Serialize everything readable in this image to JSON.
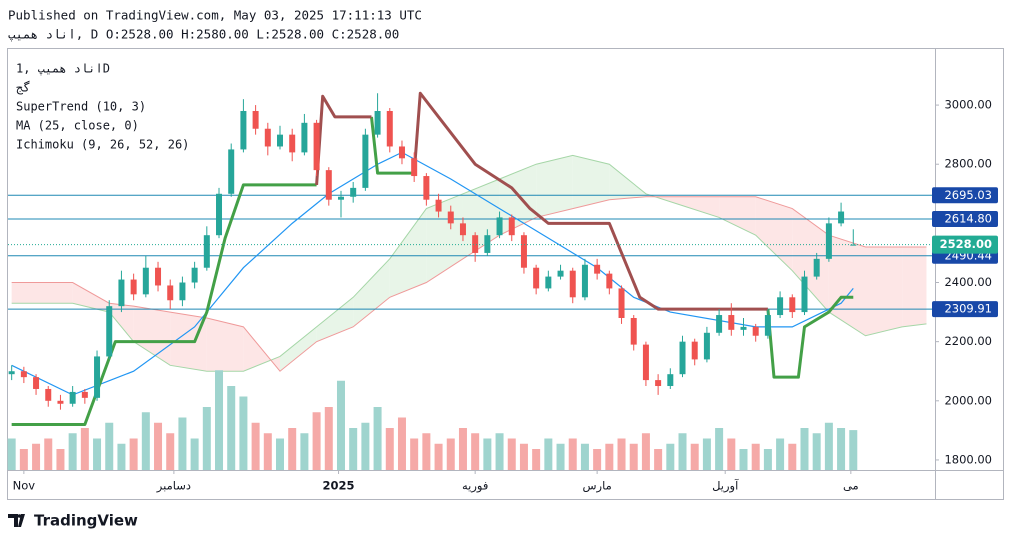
{
  "header": {
    "published": "Published on TradingView.com, May 03, 2025 17:11:13 UTC",
    "symbol_line": "اناد همیپ, D O:2528.00 H:2580.00 L:2528.00 C:2528.00"
  },
  "legend": {
    "symbol": "اناد همیپ ,1D",
    "ticker": "گج",
    "indicators": [
      "SuperTrend (10, 3)",
      "MA (25, close, 0)",
      "Ichimoku (9, 26, 52, 26)"
    ]
  },
  "footer": {
    "brand": "TradingView"
  },
  "chart_data": {
    "type": "candlestick",
    "up_color": "#26a69a",
    "down_color": "#ef5350",
    "volume_up_color": "#9fd4ce",
    "volume_down_color": "#f5a9a7",
    "ylim": [
      1766,
      3193
    ],
    "yticks": [
      {
        "value": 1800,
        "label": "1800.00"
      },
      {
        "value": 2000,
        "label": "2000.00"
      },
      {
        "value": 2200,
        "label": "2200.00"
      },
      {
        "value": 2400,
        "label": "2400.00"
      },
      {
        "value": 2600,
        "label": "2600.00"
      },
      {
        "value": 2800,
        "label": "2800.00"
      },
      {
        "value": 3000,
        "label": "3000.00"
      }
    ],
    "xlim": [
      -0.3,
      75.7
    ],
    "xticks": [
      {
        "value": 1,
        "label": "Nov"
      },
      {
        "value": 13.3,
        "label": "دسامبر"
      },
      {
        "value": 26.8,
        "label": "2025"
      },
      {
        "value": 38,
        "label": "فوریه"
      },
      {
        "value": 48,
        "label": "مارس"
      },
      {
        "value": 58.5,
        "label": "آوریل"
      },
      {
        "value": 68.8,
        "label": "می"
      }
    ],
    "candles": [
      [
        2090,
        2120,
        2070,
        2100
      ],
      [
        2100,
        2115,
        2060,
        2080
      ],
      [
        2080,
        2090,
        2020,
        2040
      ],
      [
        2040,
        2050,
        1980,
        2000
      ],
      [
        2000,
        2020,
        1970,
        1990
      ],
      [
        1990,
        2050,
        1980,
        2030
      ],
      [
        2030,
        2040,
        1990,
        2010
      ],
      [
        2010,
        2170,
        2000,
        2150
      ],
      [
        2150,
        2340,
        2140,
        2320
      ],
      [
        2320,
        2440,
        2300,
        2410
      ],
      [
        2410,
        2430,
        2340,
        2360
      ],
      [
        2360,
        2490,
        2350,
        2450
      ],
      [
        2450,
        2470,
        2370,
        2390
      ],
      [
        2390,
        2410,
        2310,
        2340
      ],
      [
        2340,
        2420,
        2320,
        2400
      ],
      [
        2400,
        2470,
        2380,
        2450
      ],
      [
        2450,
        2590,
        2440,
        2560
      ],
      [
        2560,
        2720,
        2550,
        2700
      ],
      [
        2700,
        2870,
        2690,
        2850
      ],
      [
        2850,
        3020,
        2840,
        2980
      ],
      [
        2980,
        3000,
        2900,
        2920
      ],
      [
        2920,
        2940,
        2830,
        2860
      ],
      [
        2860,
        2930,
        2850,
        2900
      ],
      [
        2900,
        2920,
        2810,
        2840
      ],
      [
        2840,
        2970,
        2830,
        2940
      ],
      [
        2940,
        2950,
        2760,
        2780
      ],
      [
        2780,
        2790,
        2660,
        2680
      ],
      [
        2680,
        2710,
        2620,
        2690
      ],
      [
        2690,
        2740,
        2670,
        2720
      ],
      [
        2720,
        2920,
        2710,
        2900
      ],
      [
        2900,
        3040,
        2890,
        2980
      ],
      [
        2980,
        2990,
        2840,
        2860
      ],
      [
        2860,
        2880,
        2800,
        2820
      ],
      [
        2820,
        2840,
        2740,
        2760
      ],
      [
        2760,
        2770,
        2660,
        2680
      ],
      [
        2680,
        2700,
        2620,
        2640
      ],
      [
        2640,
        2660,
        2580,
        2600
      ],
      [
        2600,
        2620,
        2540,
        2560
      ],
      [
        2560,
        2570,
        2470,
        2500
      ],
      [
        2500,
        2580,
        2490,
        2560
      ],
      [
        2560,
        2640,
        2550,
        2620
      ],
      [
        2620,
        2630,
        2540,
        2560
      ],
      [
        2560,
        2570,
        2430,
        2450
      ],
      [
        2450,
        2460,
        2360,
        2380
      ],
      [
        2380,
        2440,
        2370,
        2420
      ],
      [
        2420,
        2460,
        2410,
        2440
      ],
      [
        2440,
        2450,
        2330,
        2350
      ],
      [
        2350,
        2480,
        2340,
        2460
      ],
      [
        2460,
        2480,
        2410,
        2430
      ],
      [
        2430,
        2440,
        2360,
        2380
      ],
      [
        2380,
        2390,
        2260,
        2280
      ],
      [
        2280,
        2290,
        2170,
        2190
      ],
      [
        2190,
        2200,
        2050,
        2070
      ],
      [
        2070,
        2090,
        2020,
        2050
      ],
      [
        2050,
        2110,
        2040,
        2090
      ],
      [
        2090,
        2220,
        2080,
        2200
      ],
      [
        2200,
        2210,
        2120,
        2140
      ],
      [
        2140,
        2250,
        2130,
        2230
      ],
      [
        2230,
        2310,
        2220,
        2290
      ],
      [
        2290,
        2330,
        2220,
        2240
      ],
      [
        2240,
        2280,
        2220,
        2250
      ],
      [
        2250,
        2260,
        2200,
        2220
      ],
      [
        2220,
        2310,
        2210,
        2290
      ],
      [
        2290,
        2370,
        2280,
        2350
      ],
      [
        2350,
        2360,
        2280,
        2300
      ],
      [
        2300,
        2440,
        2290,
        2420
      ],
      [
        2420,
        2500,
        2410,
        2480
      ],
      [
        2480,
        2620,
        2470,
        2600
      ],
      [
        2600,
        2670,
        2590,
        2640
      ],
      [
        2528,
        2580,
        2528,
        2528
      ]
    ],
    "volume_lim": [
      0,
      100
    ],
    "volumes": [
      30,
      20,
      25,
      30,
      20,
      35,
      40,
      30,
      45,
      25,
      30,
      55,
      45,
      35,
      50,
      30,
      60,
      95,
      80,
      70,
      45,
      35,
      30,
      40,
      35,
      55,
      60,
      85,
      40,
      45,
      60,
      40,
      50,
      30,
      35,
      25,
      30,
      40,
      35,
      30,
      35,
      30,
      25,
      20,
      30,
      25,
      30,
      25,
      20,
      25,
      30,
      25,
      35,
      20,
      25,
      35,
      25,
      30,
      40,
      30,
      20,
      25,
      20,
      30,
      25,
      40,
      35,
      45,
      40,
      38
    ],
    "ma": {
      "color": "#2196f3",
      "x": [
        0,
        5,
        10,
        15,
        19,
        23,
        26,
        30,
        32,
        36,
        40,
        44,
        48,
        51,
        54,
        61,
        64,
        68,
        69
      ],
      "values": [
        2120,
        2020,
        2100,
        2250,
        2450,
        2600,
        2700,
        2800,
        2840,
        2750,
        2650,
        2550,
        2450,
        2350,
        2300,
        2250,
        2250,
        2330,
        2380
      ]
    },
    "supertrend": {
      "up_color": "#43a047",
      "down_color": "#a04f4f",
      "up": [
        [
          [
            0,
            1920
          ],
          [
            6,
            1920
          ],
          [
            8.5,
            2200
          ],
          [
            15,
            2200
          ],
          [
            16,
            2300
          ],
          [
            17.5,
            2550
          ],
          [
            19,
            2730
          ],
          [
            25,
            2730
          ]
        ],
        [
          [
            29.5,
            2960
          ],
          [
            30,
            2770
          ],
          [
            33,
            2770
          ]
        ],
        [
          [
            62,
            2310
          ],
          [
            62.5,
            2080
          ],
          [
            64.5,
            2080
          ],
          [
            65,
            2250
          ],
          [
            67,
            2300
          ],
          [
            68,
            2350
          ],
          [
            69,
            2350
          ]
        ]
      ],
      "down": [
        [
          [
            25,
            2730
          ],
          [
            25.5,
            3030
          ],
          [
            26.5,
            2960
          ],
          [
            29.5,
            2960
          ]
        ],
        [
          [
            33,
            2770
          ],
          [
            33.5,
            3040
          ],
          [
            35,
            2960
          ],
          [
            38,
            2800
          ],
          [
            41,
            2720
          ],
          [
            42.5,
            2650
          ],
          [
            44,
            2600
          ],
          [
            49,
            2600
          ],
          [
            50,
            2500
          ],
          [
            51.5,
            2350
          ],
          [
            53,
            2310
          ],
          [
            62,
            2310
          ]
        ]
      ]
    },
    "ichimoku": {
      "span_a_color": "#a5d6a7",
      "span_b_color": "#ef9a9a",
      "bull_fill": "#e6f4e6",
      "bear_fill": "#fde3e3",
      "x": [
        0,
        5,
        8,
        10,
        13,
        16,
        19,
        22,
        25,
        28,
        31,
        34,
        37,
        40,
        43,
        46,
        49,
        52,
        55,
        58,
        61,
        64,
        67,
        70,
        73,
        75
      ],
      "span_a": [
        2330,
        2330,
        2300,
        2200,
        2120,
        2100,
        2100,
        2150,
        2250,
        2350,
        2480,
        2650,
        2700,
        2750,
        2800,
        2830,
        2800,
        2700,
        2660,
        2620,
        2560,
        2440,
        2300,
        2220,
        2250,
        2260
      ],
      "span_b": [
        2400,
        2400,
        2330,
        2320,
        2300,
        2280,
        2250,
        2100,
        2200,
        2250,
        2350,
        2400,
        2480,
        2560,
        2620,
        2650,
        2680,
        2690,
        2690,
        2690,
        2690,
        2650,
        2560,
        2520,
        2520,
        2520
      ]
    },
    "levels": {
      "color": "#1e88b4",
      "label_fill": "#1848a8",
      "values": [
        2695.03,
        {
          "value": 2614.8,
          "label": "2614.80"
        },
        {
          "value": 2490.44,
          "label": "2490.44"
        },
        {
          "value": 2309.91,
          "label": "2309.91"
        }
      ]
    },
    "last_price": {
      "value": 2528,
      "label": "2528.00",
      "color": "#22ab94"
    }
  }
}
